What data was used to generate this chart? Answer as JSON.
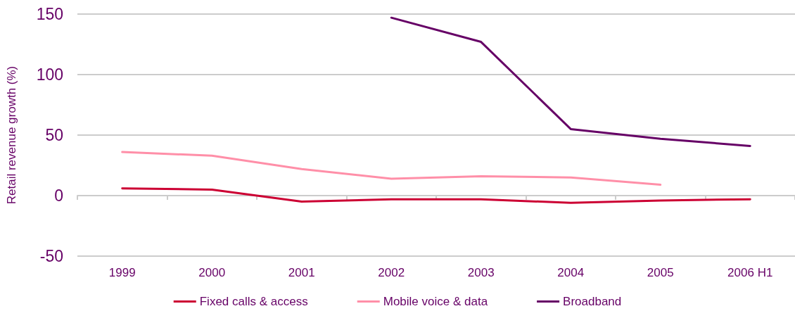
{
  "chart_data": {
    "type": "line",
    "ylabel": "Retail revenue growth (%)",
    "categories": [
      "1999",
      "2000",
      "2001",
      "2002",
      "2003",
      "2004",
      "2005",
      "2006 H1"
    ],
    "series": [
      {
        "name": "Fixed calls & access",
        "color": "#cc0033",
        "values": [
          6,
          5,
          -5,
          -3,
          -3,
          -6,
          -4,
          -3
        ]
      },
      {
        "name": "Mobile voice & data",
        "color": "#ff8fa8",
        "values": [
          36,
          33,
          22,
          14,
          16,
          15,
          9,
          null
        ]
      },
      {
        "name": "Broadband",
        "color": "#660066",
        "values": [
          null,
          null,
          null,
          147,
          127,
          55,
          47,
          41
        ]
      }
    ],
    "ylim": [
      -50,
      150
    ],
    "yticks": [
      -50,
      0,
      50,
      100,
      150
    ],
    "grid": "y",
    "legend": "bottom",
    "marker": "none",
    "line_style": "solid"
  }
}
